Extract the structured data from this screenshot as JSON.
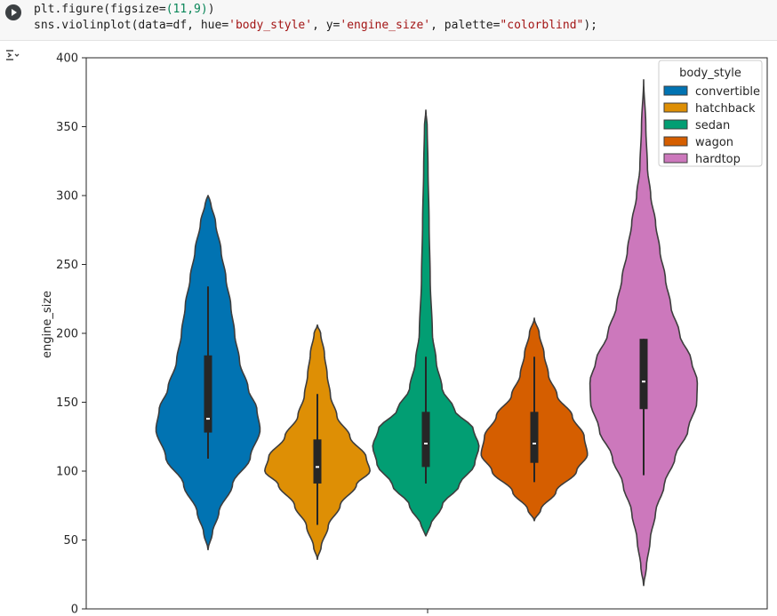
{
  "code": {
    "line1_prefix": "plt.figure(figsize=",
    "line1_args": "(11,9)",
    "line1_suffix": ")",
    "line2_a": "sns.violinplot(data=df, hue=",
    "line2_hue": "'body_style'",
    "line2_b": ", y=",
    "line2_y": "'engine_size'",
    "line2_c": ", palette=",
    "line2_pal": "\"colorblind\"",
    "line2_d": ");"
  },
  "icons": {
    "run": "play-icon",
    "output_toggle": "output-collapse-icon"
  },
  "chart_data": {
    "type": "violin",
    "ylabel": "engine_size",
    "ylim": [
      0,
      400
    ],
    "yticks": [
      0,
      50,
      100,
      150,
      200,
      250,
      300,
      350,
      400
    ],
    "legend": {
      "title": "body_style",
      "placement": "top-right"
    },
    "series": [
      {
        "name": "convertible",
        "color": "#0173b2",
        "min": 43,
        "max": 300,
        "q1": 128,
        "median": 138,
        "q3": 184,
        "whisker_low": 109,
        "whisker_high": 234,
        "profile": [
          [
            43,
            0
          ],
          [
            55,
            0.08
          ],
          [
            70,
            0.2
          ],
          [
            90,
            0.45
          ],
          [
            110,
            0.78
          ],
          [
            130,
            0.96
          ],
          [
            145,
            0.9
          ],
          [
            160,
            0.74
          ],
          [
            180,
            0.58
          ],
          [
            200,
            0.49
          ],
          [
            220,
            0.42
          ],
          [
            240,
            0.33
          ],
          [
            260,
            0.24
          ],
          [
            280,
            0.14
          ],
          [
            295,
            0.05
          ],
          [
            300,
            0
          ]
        ]
      },
      {
        "name": "hatchback",
        "color": "#de8f05",
        "min": 36,
        "max": 206,
        "q1": 91,
        "median": 103,
        "q3": 123,
        "whisker_low": 61,
        "whisker_high": 156,
        "profile": [
          [
            36,
            0
          ],
          [
            45,
            0.07
          ],
          [
            60,
            0.2
          ],
          [
            75,
            0.42
          ],
          [
            90,
            0.72
          ],
          [
            100,
            0.97
          ],
          [
            110,
            0.9
          ],
          [
            125,
            0.6
          ],
          [
            140,
            0.36
          ],
          [
            155,
            0.24
          ],
          [
            170,
            0.18
          ],
          [
            185,
            0.13
          ],
          [
            200,
            0.06
          ],
          [
            206,
            0
          ]
        ]
      },
      {
        "name": "sedan",
        "color": "#029e73",
        "min": 53,
        "max": 362,
        "q1": 103,
        "median": 120,
        "q3": 143,
        "whisker_low": 91,
        "whisker_high": 183,
        "profile": [
          [
            53,
            0
          ],
          [
            60,
            0.08
          ],
          [
            75,
            0.3
          ],
          [
            90,
            0.62
          ],
          [
            105,
            0.9
          ],
          [
            118,
            0.98
          ],
          [
            130,
            0.88
          ],
          [
            145,
            0.52
          ],
          [
            160,
            0.3
          ],
          [
            180,
            0.19
          ],
          [
            200,
            0.12
          ],
          [
            240,
            0.08
          ],
          [
            280,
            0.06
          ],
          [
            320,
            0.04
          ],
          [
            350,
            0.025
          ],
          [
            362,
            0
          ]
        ]
      },
      {
        "name": "wagon",
        "color": "#d55e00",
        "min": 64,
        "max": 211,
        "q1": 106,
        "median": 120,
        "q3": 143,
        "whisker_low": 92,
        "whisker_high": 183,
        "profile": [
          [
            64,
            0
          ],
          [
            72,
            0.12
          ],
          [
            85,
            0.4
          ],
          [
            100,
            0.78
          ],
          [
            112,
            0.98
          ],
          [
            125,
            0.92
          ],
          [
            140,
            0.7
          ],
          [
            155,
            0.42
          ],
          [
            170,
            0.26
          ],
          [
            185,
            0.18
          ],
          [
            200,
            0.09
          ],
          [
            211,
            0
          ]
        ]
      },
      {
        "name": "hardtop",
        "color": "#cc78bc",
        "min": 17,
        "max": 384,
        "q1": 145,
        "median": 165,
        "q3": 196,
        "whisker_low": 97,
        "whisker_high": 196,
        "profile": [
          [
            17,
            0
          ],
          [
            30,
            0.05
          ],
          [
            50,
            0.12
          ],
          [
            70,
            0.22
          ],
          [
            90,
            0.38
          ],
          [
            110,
            0.58
          ],
          [
            130,
            0.82
          ],
          [
            150,
            0.98
          ],
          [
            165,
            0.99
          ],
          [
            180,
            0.88
          ],
          [
            200,
            0.66
          ],
          [
            220,
            0.5
          ],
          [
            240,
            0.4
          ],
          [
            260,
            0.3
          ],
          [
            280,
            0.22
          ],
          [
            300,
            0.13
          ],
          [
            320,
            0.07
          ],
          [
            350,
            0.04
          ],
          [
            384,
            0
          ]
        ]
      }
    ]
  }
}
